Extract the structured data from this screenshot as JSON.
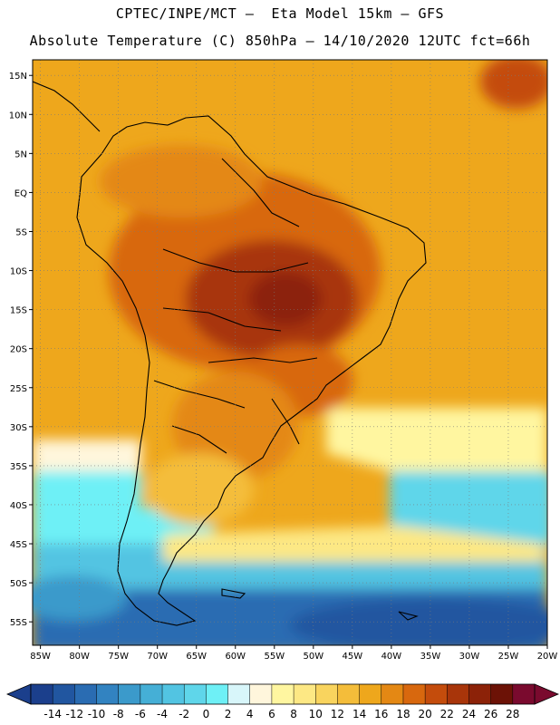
{
  "header": {
    "title_line1": "CPTEC/INPE/MCT –  Eta Model 15km – GFS",
    "title_line2": "Absolute Temperature (C) 850hPa – 14/10/2020 12UTC fct=66h"
  },
  "map": {
    "lat_labels": [
      "15N",
      "10N",
      "5N",
      "EQ",
      "5S",
      "10S",
      "15S",
      "20S",
      "25S",
      "30S",
      "35S",
      "40S",
      "45S",
      "50S",
      "55S"
    ],
    "lat_values": [
      15,
      10,
      5,
      0,
      -5,
      -10,
      -15,
      -20,
      -25,
      -30,
      -35,
      -40,
      -45,
      -50,
      -55
    ],
    "lon_labels": [
      "85W",
      "80W",
      "75W",
      "70W",
      "65W",
      "60W",
      "55W",
      "50W",
      "45W",
      "40W",
      "35W",
      "30W",
      "25W",
      "20W"
    ],
    "lon_values": [
      -85,
      -80,
      -75,
      -70,
      -65,
      -60,
      -55,
      -50,
      -45,
      -40,
      -35,
      -30,
      -25,
      -20
    ],
    "lat_range": [
      -58,
      17
    ],
    "lon_range": [
      -86,
      -20
    ]
  },
  "colorbar": {
    "labels": [
      "-14",
      "-12",
      "-10",
      "-8",
      "-6",
      "-4",
      "-2",
      "0",
      "2",
      "4",
      "6",
      "8",
      "10",
      "12",
      "14",
      "16",
      "18",
      "20",
      "22",
      "24",
      "26",
      "28"
    ],
    "colors": [
      "#1b3f8c",
      "#2156a0",
      "#2a6cb2",
      "#3283c1",
      "#3b9acb",
      "#45afd6",
      "#52c4e2",
      "#5fd6ea",
      "#6ef0f6",
      "#d8f6fa",
      "#fff6dc",
      "#fff6a0",
      "#fde884",
      "#f9d45e",
      "#f4bd3a",
      "#eea71c",
      "#e48814",
      "#d8680e",
      "#c44c0c",
      "#a8350a",
      "#8c2208",
      "#6c1206",
      "#7a0a2e"
    ],
    "under_color": "#1b3f8c",
    "over_color": "#7a0a2e"
  }
}
